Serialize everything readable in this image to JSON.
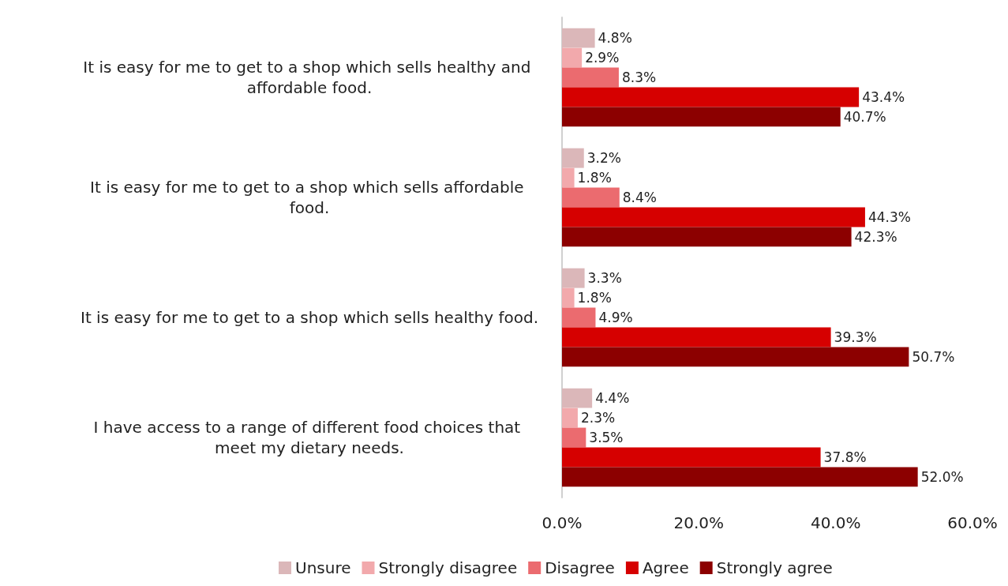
{
  "chart_data": {
    "type": "bar",
    "orientation": "horizontal",
    "categories": [
      "It is easy for me to get to a shop which sells healthy and affordable food.",
      "It is easy for me to get to a shop which sells affordable food.",
      "It is easy for me to get to a shop which sells healthy food.",
      "I have access to a range of different food choices that meet my dietary needs."
    ],
    "series": [
      {
        "name": "Unsure",
        "color": "#dbb7b9",
        "values": [
          4.8,
          3.2,
          3.3,
          4.4
        ],
        "value_labels": [
          "4.8%",
          "3.2%",
          "3.3%",
          "4.4%"
        ]
      },
      {
        "name": "Strongly disagree",
        "color": "#f2a9ac",
        "values": [
          2.9,
          1.8,
          1.8,
          2.3
        ],
        "value_labels": [
          "2.9%",
          "1.8%",
          "1.8%",
          "2.3%"
        ]
      },
      {
        "name": "Disagree",
        "color": "#eb6b6f",
        "values": [
          8.3,
          8.4,
          4.9,
          3.5
        ],
        "value_labels": [
          "8.3%",
          "8.4%",
          "4.9%",
          "3.5%"
        ]
      },
      {
        "name": "Agree",
        "color": "#d60000",
        "values": [
          43.4,
          44.3,
          39.3,
          37.8
        ],
        "value_labels": [
          "43.4%",
          "44.3%",
          "39.3%",
          "37.8%"
        ]
      },
      {
        "name": "Strongly agree",
        "color": "#8c0000",
        "values": [
          40.7,
          42.3,
          50.7,
          52.0
        ],
        "value_labels": [
          "40.7%",
          "42.3%",
          "50.7%",
          "52.0%"
        ]
      }
    ],
    "xlim": [
      0,
      60
    ],
    "xticks": [
      {
        "value": 0,
        "label": "0.0%"
      },
      {
        "value": 20,
        "label": "20.0%"
      },
      {
        "value": 40,
        "label": "40.0%"
      },
      {
        "value": 60,
        "label": "60.0%"
      }
    ],
    "grid": false,
    "legend": "bottom"
  }
}
